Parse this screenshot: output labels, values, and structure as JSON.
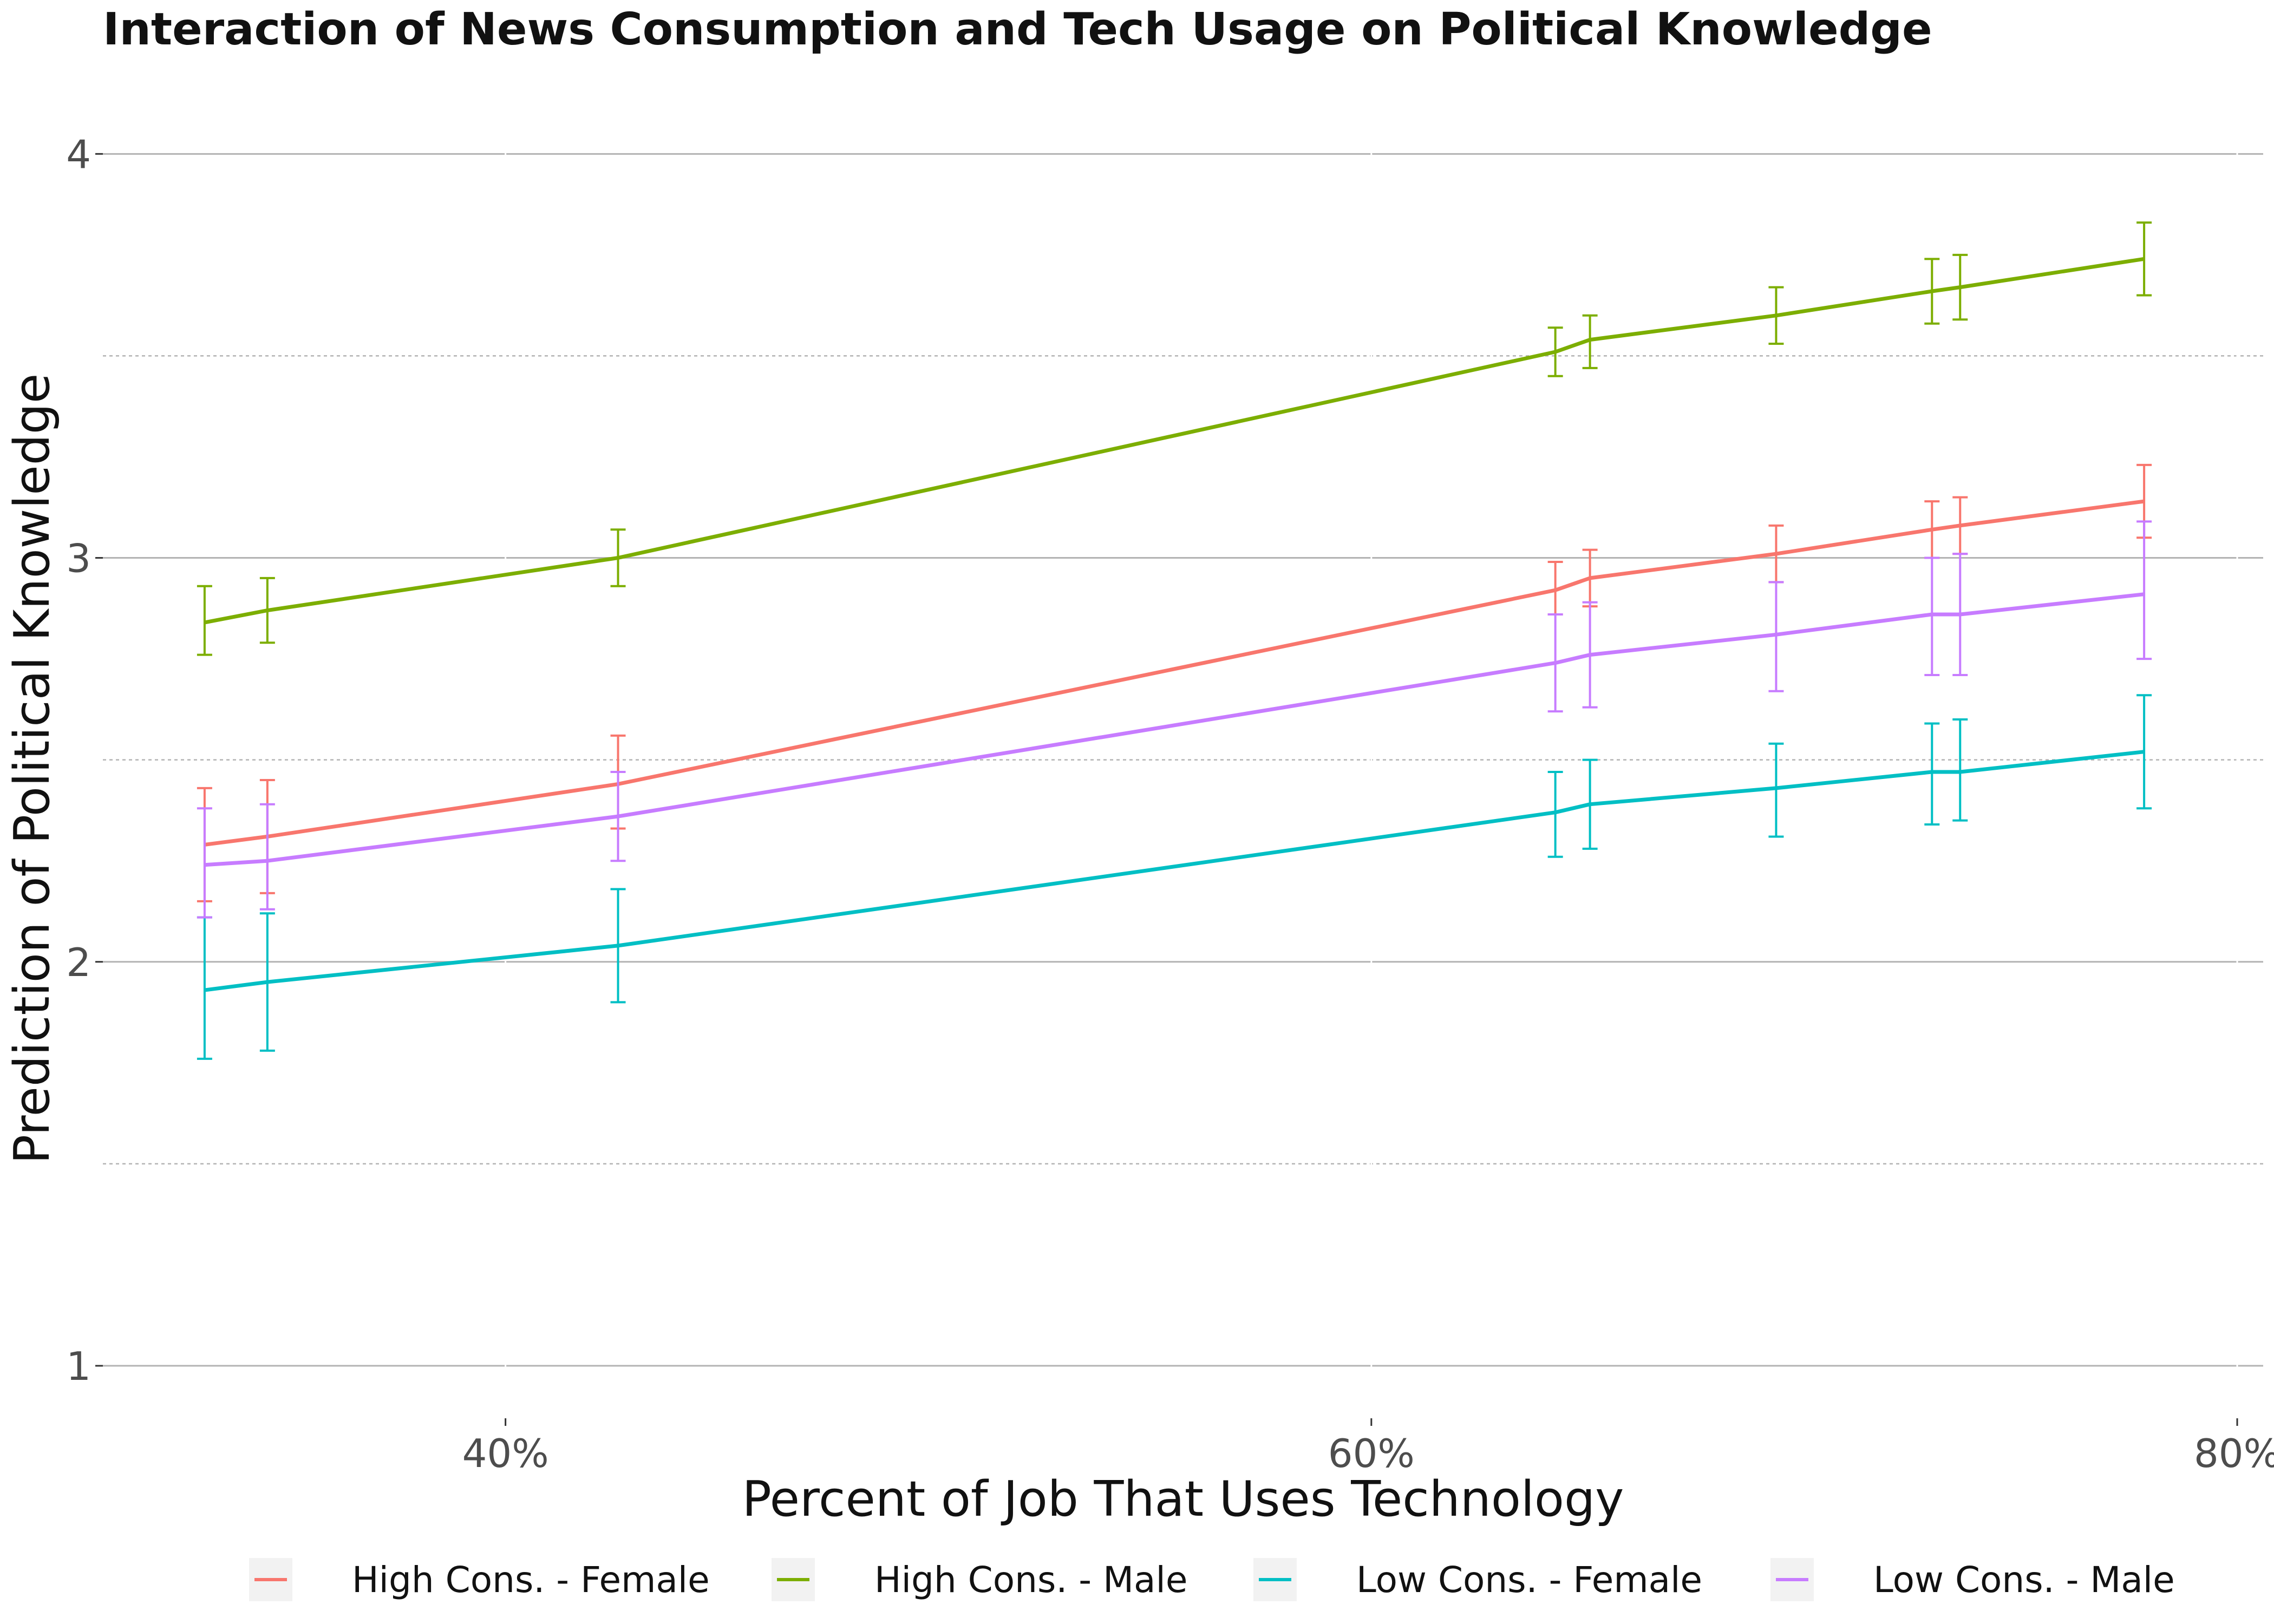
{
  "chart_data": {
    "type": "line",
    "title": "Interaction of News Consumption and Tech Usage on Political Knowledge",
    "xlabel": "Percent of Job That Uses Technology",
    "ylabel": "Prediction of Political Knowledge",
    "xlim": [
      0.307,
      0.806
    ],
    "ylim": [
      0.87,
      4.18
    ],
    "x_ticks": [
      0.4,
      0.6,
      0.8
    ],
    "x_tick_labels": [
      "40%",
      "60%",
      "80%"
    ],
    "y_ticks": [
      1,
      2,
      3,
      4
    ],
    "y_tick_labels": [
      "1",
      "2",
      "3",
      "4"
    ],
    "y_minor_grid": [
      1.5,
      2.5,
      3.5
    ],
    "grid": true,
    "legend_position": "bottom",
    "colors": {
      "High Cons. - Female": "#F8766D",
      "High Cons. - Male": "#7CAE00",
      "Low Cons. - Female": "#00BFC4",
      "Low Cons. - Male": "#C77CFF"
    },
    "series": [
      {
        "name": "High Cons. - Female",
        "color": "#F8766D",
        "x": [
          0.3305,
          0.345,
          0.426,
          0.6425,
          0.6505,
          0.6935,
          0.7295,
          0.736,
          0.7785
        ],
        "y": [
          2.29,
          2.31,
          2.44,
          2.92,
          2.95,
          3.01,
          3.07,
          3.08,
          3.14
        ],
        "lower": [
          2.15,
          2.17,
          2.33,
          2.86,
          2.88,
          2.94,
          3.0,
          3.01,
          3.05
        ],
        "upper": [
          2.43,
          2.45,
          2.56,
          2.99,
          3.02,
          3.08,
          3.14,
          3.15,
          3.23
        ]
      },
      {
        "name": "High Cons. - Male",
        "color": "#7CAE00",
        "x": [
          0.3305,
          0.345,
          0.426,
          0.6425,
          0.6505,
          0.6935,
          0.7295,
          0.736,
          0.7785
        ],
        "y": [
          2.84,
          2.87,
          3.0,
          3.51,
          3.54,
          3.6,
          3.66,
          3.67,
          3.74
        ],
        "lower": [
          2.76,
          2.79,
          2.93,
          3.45,
          3.47,
          3.53,
          3.58,
          3.59,
          3.65
        ],
        "upper": [
          2.93,
          2.95,
          3.07,
          3.57,
          3.6,
          3.67,
          3.74,
          3.75,
          3.83
        ]
      },
      {
        "name": "Low Cons. - Female",
        "color": "#00BFC4",
        "x": [
          0.3305,
          0.345,
          0.426,
          0.6425,
          0.6505,
          0.6935,
          0.7295,
          0.736,
          0.7785
        ],
        "y": [
          1.93,
          1.95,
          2.04,
          2.37,
          2.39,
          2.43,
          2.47,
          2.47,
          2.52
        ],
        "lower": [
          1.76,
          1.78,
          1.9,
          2.26,
          2.28,
          2.31,
          2.34,
          2.35,
          2.38
        ],
        "upper": [
          2.11,
          2.12,
          2.18,
          2.47,
          2.5,
          2.54,
          2.59,
          2.6,
          2.66
        ]
      },
      {
        "name": "Low Cons. - Male",
        "color": "#C77CFF",
        "x": [
          0.3305,
          0.345,
          0.426,
          0.6425,
          0.6505,
          0.6935,
          0.7295,
          0.736,
          0.7785
        ],
        "y": [
          2.24,
          2.25,
          2.36,
          2.74,
          2.76,
          2.81,
          2.86,
          2.86,
          2.91
        ],
        "lower": [
          2.11,
          2.13,
          2.25,
          2.62,
          2.63,
          2.67,
          2.71,
          2.71,
          2.75
        ],
        "upper": [
          2.38,
          2.39,
          2.47,
          2.86,
          2.89,
          2.94,
          3.0,
          3.01,
          3.09
        ]
      }
    ]
  }
}
